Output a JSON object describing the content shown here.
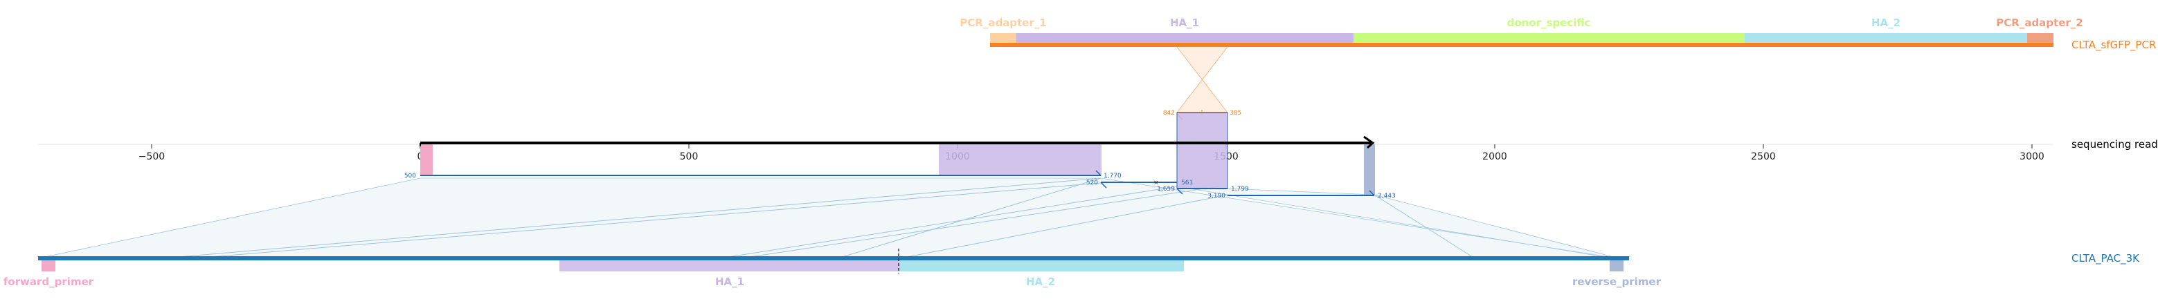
{
  "top_track": {
    "name": "CLTA_sfGFP_PCR",
    "features": [
      {
        "label": "PCR_adapter_1",
        "color": "#fdd0a2",
        "start": 0,
        "end": 0
      },
      {
        "label": "HA_1",
        "color": "#c9b8e6",
        "start": 0,
        "end": 0
      },
      {
        "label": "donor_specific",
        "color": "#c6fb7c",
        "start": 0,
        "end": 0
      },
      {
        "label": "HA_2",
        "color": "#a8e3ee",
        "start": 0,
        "end": 0
      },
      {
        "label": "PCR_adapter_2",
        "color": "#f0a080",
        "start": 0,
        "end": 0
      }
    ],
    "line_color": "#f58220"
  },
  "read_track": {
    "name": "sequencing read",
    "axis": {
      "min": -650,
      "max": 3050,
      "ticks": [
        -500,
        0,
        500,
        1000,
        1500,
        2000,
        2500,
        3000
      ],
      "tick_labels": [
        "−500",
        "0",
        "500",
        "1000",
        "1500",
        "2000",
        "2500",
        "3000"
      ]
    },
    "read_start": 0,
    "read_end": 1780
  },
  "bottom_track": {
    "name": "CLTA_PAC_3K",
    "features": [
      {
        "label": "forward_primer",
        "color": "#f4a8c8"
      },
      {
        "label": "HA_1",
        "color": "#c9b8e6"
      },
      {
        "label": "HA_2",
        "color": "#a8e3ee"
      },
      {
        "label": "reverse_primer",
        "color": "#aab8d8"
      }
    ],
    "line_color": "#1f77b4"
  },
  "alignment_labels": {
    "top": {
      "left": "842",
      "right": "385"
    },
    "row1": {
      "left": "500",
      "right": "1,770"
    },
    "row2": {
      "left": "520",
      "right": "561"
    },
    "row3": {
      "left": "1,659",
      "right": "1,799"
    },
    "row4": {
      "left": "3,190",
      "right": "2,443"
    }
  },
  "colors": {
    "alignment": "#2166ac",
    "fill": "#d9e7f0"
  }
}
